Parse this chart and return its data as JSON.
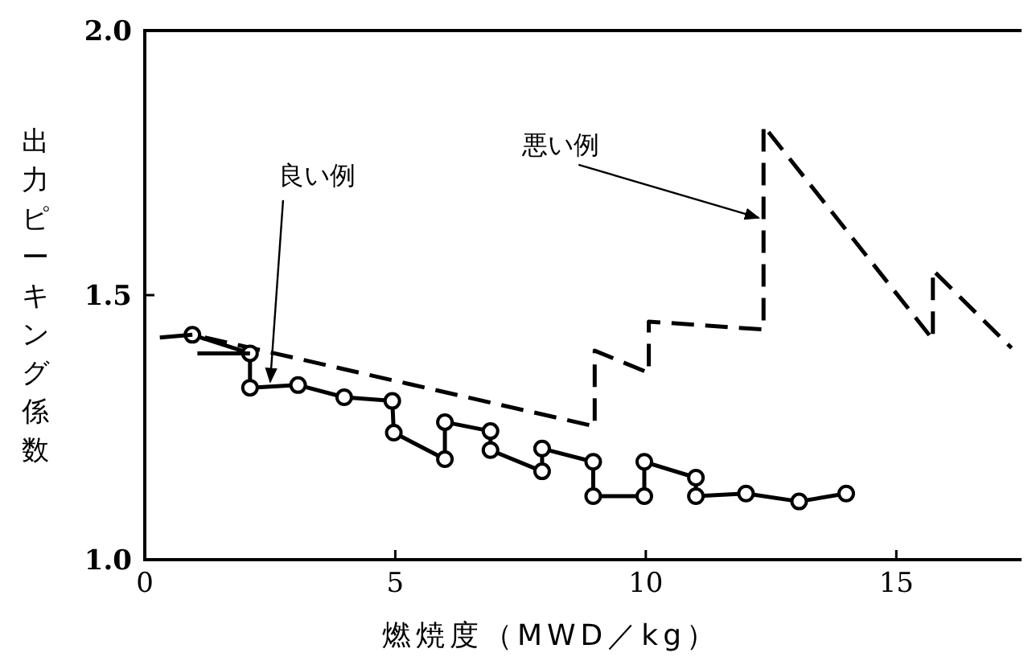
{
  "chart_data": {
    "type": "line",
    "xlabel": "燃焼度（MWD／kg）",
    "ylabel": "出力ピーキング係数",
    "xlim": [
      0,
      17.5
    ],
    "ylim": [
      1.0,
      2.0
    ],
    "xticks": [
      0,
      5,
      10,
      15
    ],
    "yticks": [
      {
        "value": 1.0,
        "label": "1.0"
      },
      {
        "value": 1.5,
        "label": "1.5"
      },
      {
        "value": 2.0,
        "label": "2.0"
      }
    ],
    "grid": false,
    "series": [
      {
        "color": "#000000",
        "line_style": "dashed",
        "marker": "none",
        "x": [
          1.2,
          8.98,
          8.98,
          10.06,
          10.06,
          12.35,
          12.35,
          15.73,
          15.73,
          17.3
        ],
        "values": [
          1.42,
          1.252,
          1.395,
          1.353,
          1.45,
          1.435,
          1.82,
          1.416,
          1.547,
          1.4
        ]
      },
      {
        "color": "#000000",
        "line_style": "solid",
        "marker": "circle",
        "x": [
          0.95,
          2.1,
          2.1,
          3.06,
          3.98,
          4.94,
          4.97,
          5.99,
          5.99,
          6.9,
          6.9,
          7.93,
          7.93,
          8.95,
          8.95,
          9.97,
          9.97,
          11.0,
          11.0,
          12.0,
          13.06,
          14.0
        ],
        "values": [
          1.425,
          1.39,
          1.325,
          1.33,
          1.307,
          1.3,
          1.24,
          1.19,
          1.26,
          1.243,
          1.207,
          1.167,
          1.21,
          1.185,
          1.12,
          1.12,
          1.185,
          1.155,
          1.12,
          1.125,
          1.11,
          1.125
        ]
      },
      {
        "color": "#000000",
        "line_style": "solid",
        "marker": "none",
        "x": [
          0.3,
          0.95,
          null,
          1.05,
          2.1
        ],
        "values": [
          1.42,
          1.425,
          null,
          1.39,
          1.39
        ]
      }
    ],
    "annotations": [
      {
        "text": "悪い例",
        "x": 12.35,
        "y": 1.64
      },
      {
        "text": "良い例",
        "x": 2.6,
        "y": 1.33
      }
    ]
  }
}
